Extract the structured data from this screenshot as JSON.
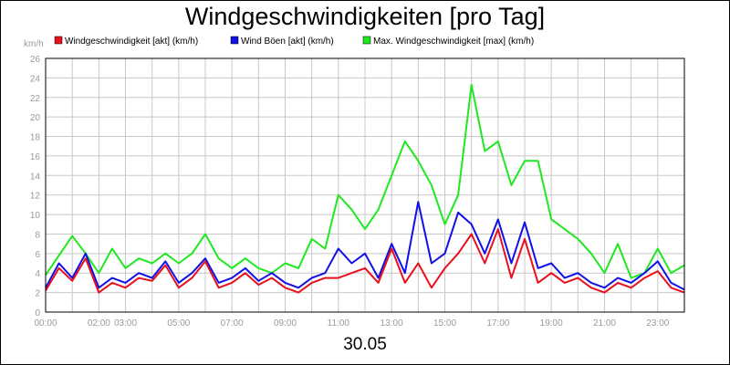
{
  "chart_data": {
    "type": "line",
    "title": "Windgeschwindigkeiten [pro Tag]",
    "date_label": "30.05",
    "ylabel": "km/h",
    "ylim": [
      0,
      26
    ],
    "y_ticks": [
      0,
      2,
      4,
      6,
      8,
      10,
      12,
      14,
      16,
      18,
      20,
      22,
      24,
      26
    ],
    "xlim": [
      0,
      24
    ],
    "x_ticks": [
      {
        "t": 0,
        "label": "00:00"
      },
      {
        "t": 2,
        "label": "02:00"
      },
      {
        "t": 3,
        "label": "03:00"
      },
      {
        "t": 5,
        "label": "05:00"
      },
      {
        "t": 7,
        "label": "07:00"
      },
      {
        "t": 9,
        "label": "09:00"
      },
      {
        "t": 11,
        "label": "11:00"
      },
      {
        "t": 13,
        "label": "13:00"
      },
      {
        "t": 15,
        "label": "15:00"
      },
      {
        "t": 17,
        "label": "17:00"
      },
      {
        "t": 19,
        "label": "19:00"
      },
      {
        "t": 21,
        "label": "21:00"
      },
      {
        "t": 23,
        "label": "23:00"
      }
    ],
    "grid": true,
    "legend_position": "top",
    "series": [
      {
        "name": "Windgeschwindigkeit [akt] (km/h)",
        "color": "#e8101c",
        "x": [
          0,
          0.5,
          1,
          1.5,
          2,
          2.5,
          3,
          3.5,
          4,
          4.5,
          5,
          5.5,
          6,
          6.5,
          7,
          7.5,
          8,
          8.5,
          9,
          9.5,
          10,
          10.5,
          11,
          11.5,
          12,
          12.5,
          13,
          13.5,
          14,
          14.5,
          15,
          15.5,
          16,
          16.5,
          17,
          17.5,
          18,
          18.5,
          19,
          19.5,
          20,
          20.5,
          21,
          21.5,
          22,
          22.5,
          23,
          23.5,
          24
        ],
        "values": [
          2.2,
          4.5,
          3.2,
          5.5,
          2.0,
          3.0,
          2.5,
          3.5,
          3.2,
          4.8,
          2.5,
          3.5,
          5.2,
          2.5,
          3.0,
          4.0,
          2.8,
          3.5,
          2.5,
          2.0,
          3.0,
          3.5,
          3.5,
          4.0,
          4.5,
          3.0,
          6.5,
          3.0,
          5.0,
          2.5,
          4.5,
          6.0,
          8.0,
          5.0,
          8.5,
          3.5,
          7.5,
          3.0,
          4.0,
          3.0,
          3.5,
          2.5,
          2.0,
          3.0,
          2.5,
          3.5,
          4.2,
          2.5,
          2.0
        ]
      },
      {
        "name": "Wind Böen [akt] (km/h)",
        "color": "#1010e8",
        "x": [
          0,
          0.5,
          1,
          1.5,
          2,
          2.5,
          3,
          3.5,
          4,
          4.5,
          5,
          5.5,
          6,
          6.5,
          7,
          7.5,
          8,
          8.5,
          9,
          9.5,
          10,
          10.5,
          11,
          11.5,
          12,
          12.5,
          13,
          13.5,
          14,
          14.5,
          15,
          15.5,
          16,
          16.5,
          17,
          17.5,
          18,
          18.5,
          19,
          19.5,
          20,
          20.5,
          21,
          21.5,
          22,
          22.5,
          23,
          23.5,
          24
        ],
        "values": [
          2.5,
          5.0,
          3.5,
          6.0,
          2.5,
          3.5,
          3.0,
          4.0,
          3.5,
          5.2,
          3.0,
          4.0,
          5.5,
          3.0,
          3.5,
          4.5,
          3.2,
          4.0,
          3.0,
          2.5,
          3.5,
          4.0,
          6.5,
          5.0,
          6.0,
          3.5,
          7.0,
          4.0,
          11.3,
          5.0,
          6.0,
          10.2,
          9.0,
          6.0,
          9.5,
          5.0,
          9.2,
          4.5,
          5.0,
          3.5,
          4.0,
          3.0,
          2.5,
          3.5,
          3.0,
          4.0,
          5.2,
          3.0,
          2.3
        ]
      },
      {
        "name": "Max. Windgeschwindigkeit [max] (km/h)",
        "color": "#20e820",
        "x": [
          0,
          0.5,
          1,
          1.5,
          2,
          2.5,
          3,
          3.5,
          4,
          4.5,
          5,
          5.5,
          6,
          6.5,
          7,
          7.5,
          8,
          8.5,
          9,
          9.5,
          10,
          10.5,
          11,
          11.5,
          12,
          12.5,
          13,
          13.5,
          14,
          14.5,
          15,
          15.5,
          16,
          16.5,
          17,
          17.5,
          18,
          18.5,
          19,
          19.5,
          20,
          20.5,
          21,
          21.5,
          22,
          22.5,
          23,
          23.5,
          24
        ],
        "values": [
          3.8,
          5.8,
          7.8,
          6.0,
          4.0,
          6.5,
          4.5,
          5.5,
          5.0,
          6.0,
          5.0,
          6.0,
          8.0,
          5.5,
          4.5,
          5.5,
          4.5,
          4.0,
          5.0,
          4.5,
          7.5,
          6.5,
          12.0,
          10.5,
          8.5,
          10.5,
          14.0,
          17.5,
          15.5,
          13.0,
          9.0,
          12.0,
          23.3,
          16.5,
          17.5,
          13.0,
          15.5,
          15.5,
          9.5,
          8.5,
          7.5,
          6.0,
          4.0,
          7.0,
          3.5,
          4.0,
          6.5,
          4.0,
          4.8
        ]
      }
    ]
  }
}
